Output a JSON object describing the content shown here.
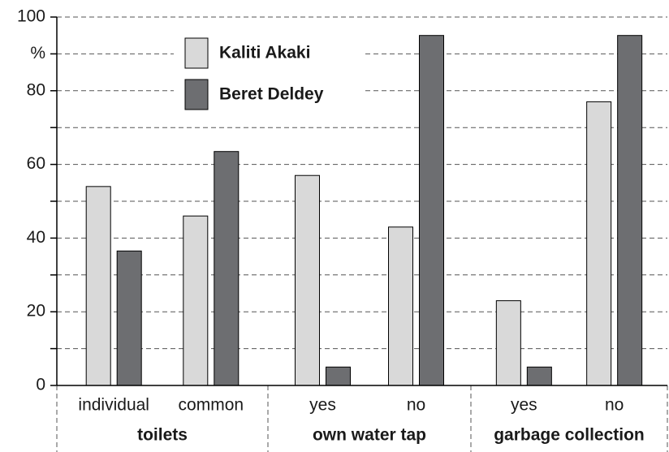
{
  "chart_data": {
    "type": "bar",
    "categories": [
      "individual",
      "common",
      "yes",
      "no",
      "yes",
      "no"
    ],
    "groups": [
      "toilets",
      "own water tap",
      "garbage collection"
    ],
    "series": [
      {
        "name": "Kaliti Akaki",
        "color": "#d9d9d9",
        "values": [
          54,
          46,
          57,
          43,
          23,
          77
        ]
      },
      {
        "name": "Beret Deldey",
        "color": "#6d6e71",
        "values": [
          36.5,
          63.5,
          5,
          95,
          5,
          95
        ]
      }
    ],
    "ylim": [
      0,
      100
    ],
    "yticks": [
      0,
      20,
      40,
      60,
      80,
      {
        "value": 90,
        "label": "%"
      },
      100
    ],
    "minor_yticks": [
      10,
      30,
      50,
      70
    ],
    "grid": true
  }
}
